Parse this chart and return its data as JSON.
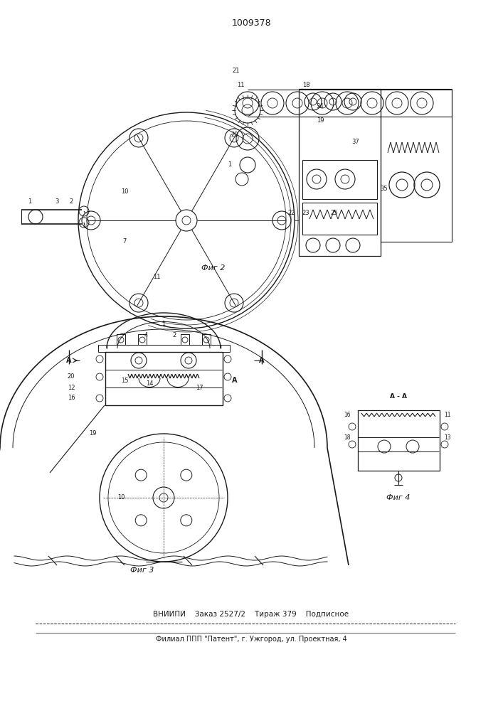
{
  "patent_number": "1009378",
  "fig2_label": "Фиг 2",
  "fig3_label": "Фиг 3",
  "fig4_label": "Фиг 4",
  "footer_line1": "ВНИИПИ    Заказ 2527/2    Тираж 379    Подписное",
  "footer_line2": "Филиал ППП \"Патент\", г. Ужгород, ул. Проектная, 4",
  "bg_color": "#ffffff",
  "line_color": "#1a1a1a",
  "line_width": 0.7
}
